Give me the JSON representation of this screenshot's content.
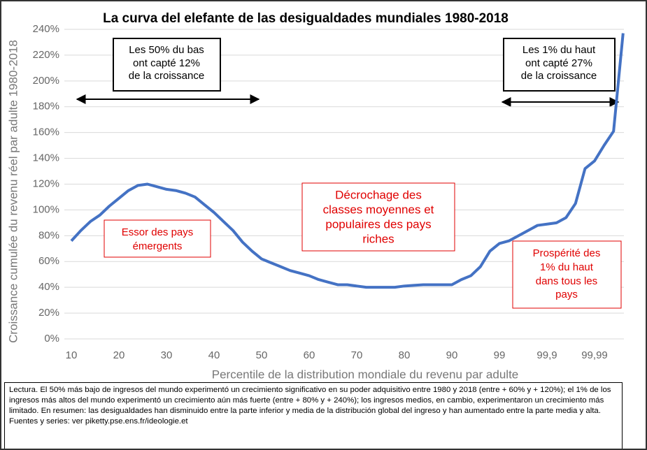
{
  "chart_data": {
    "type": "line",
    "title": "La curva del elefante de las desigualdades mundiales 1980-2018",
    "x_label": "Percentile de la distribution mondiale du revenu par adulte",
    "y_label": "Croissance cumulée du revenu réel par adulte 1980-2018",
    "categories": [
      "10",
      null,
      null,
      null,
      null,
      "20",
      null,
      null,
      null,
      null,
      "30",
      null,
      null,
      null,
      null,
      "40",
      null,
      null,
      null,
      null,
      "50",
      null,
      null,
      null,
      null,
      "60",
      null,
      null,
      null,
      null,
      "70",
      null,
      null,
      null,
      null,
      "80",
      null,
      null,
      null,
      null,
      "90",
      null,
      null,
      null,
      null,
      "99",
      null,
      null,
      null,
      null,
      "99,9",
      null,
      null,
      null,
      null,
      "99,99",
      null,
      null,
      null
    ],
    "series": [
      {
        "name": "Croissance",
        "color": "#4472c4",
        "values": [
          76,
          84,
          91,
          96,
          103,
          109,
          115,
          119,
          120,
          118,
          116,
          115,
          113,
          110,
          104,
          98,
          91,
          84,
          75,
          68,
          62,
          59,
          56,
          53,
          51,
          49,
          46,
          44,
          42,
          42,
          41,
          40,
          40,
          40,
          40,
          41,
          41.5,
          42,
          42,
          42,
          42,
          46,
          49,
          56,
          68,
          74,
          76,
          80,
          84,
          88,
          89,
          90,
          94,
          105,
          132,
          138,
          150,
          161,
          237
        ]
      }
    ],
    "ylim": [
      0,
      240
    ],
    "yticks": [
      {
        "value": 0,
        "label": "0%"
      },
      {
        "value": 20,
        "label": "20%"
      },
      {
        "value": 40,
        "label": "40%"
      },
      {
        "value": 60,
        "label": "60%"
      },
      {
        "value": 80,
        "label": "80%"
      },
      {
        "value": 100,
        "label": "100%"
      },
      {
        "value": 120,
        "label": "120%"
      },
      {
        "value": 140,
        "label": "140%"
      },
      {
        "value": 160,
        "label": "160%"
      },
      {
        "value": 180,
        "label": "180%"
      },
      {
        "value": 200,
        "label": "200%"
      },
      {
        "value": 220,
        "label": "220%"
      },
      {
        "value": 240,
        "label": "240%"
      }
    ],
    "grid": true,
    "annotations": [
      {
        "lines": [
          "Les 50% du bas",
          "ont capté 12%",
          "de la croissance"
        ]
      },
      {
        "lines": [
          "Les 1% du haut",
          "ont capté 27%",
          "de la croissance"
        ]
      },
      {
        "lines": [
          "Essor des pays",
          "émergents"
        ]
      },
      {
        "lines": [
          "Décrochage des",
          "classes moyennes et",
          "populaires des pays",
          "riches"
        ]
      },
      {
        "lines": [
          "Prospérité des",
          "1% du haut",
          "dans tous les",
          "pays"
        ]
      }
    ],
    "note": "Lectura. El 50% más bajo de ingresos del mundo experimentó un crecimiento significativo en su poder adquisitivo entre 1980 y 2018 (entre + 60% y + 120%); el 1% de los ingresos más altos del mundo experimentó un crecimiento aún más fuerte (entre + 80% y + 240%); los ingresos medios, en cambio, experimentaron un crecimiento más limitado. En resumen: las desigualdades han disminuido entre la parte inferior y media de la distribución global del ingreso y han aumentado entre la parte media y alta. Fuentes y series: ver piketty.pse.ens.fr/ideologie.et"
  }
}
